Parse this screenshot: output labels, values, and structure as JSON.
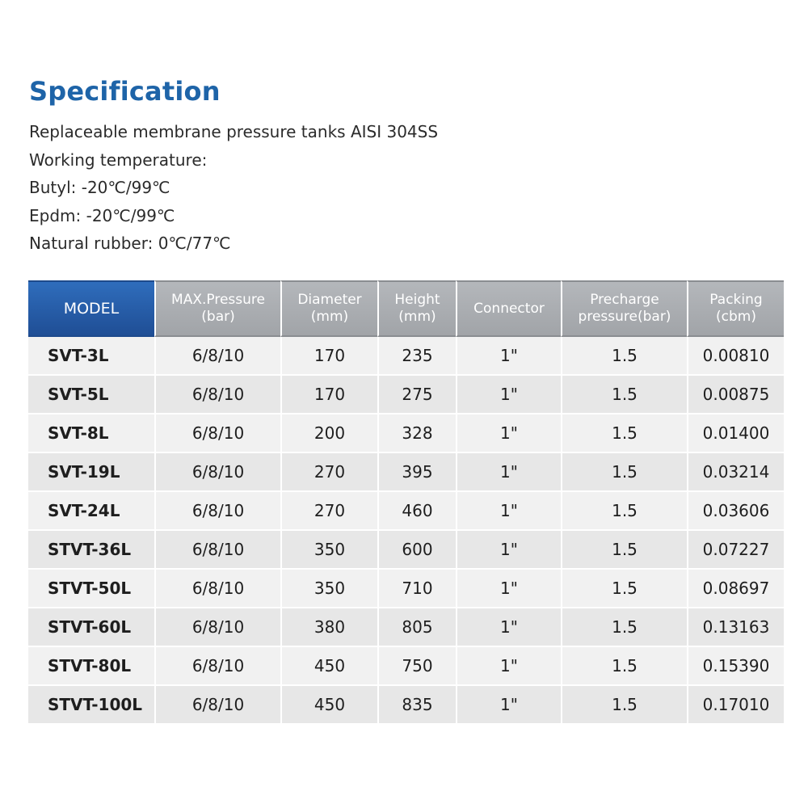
{
  "title": "Specification",
  "description": [
    "Replaceable membrane pressure tanks AISI 304SS",
    "Working temperature:",
    "Butyl: -20℃/99℃",
    "Epdm: -20℃/99℃",
    "Natural rubber: 0℃/77℃"
  ],
  "table": {
    "headers": [
      [
        "MODEL"
      ],
      [
        "MAX.Pressure",
        "(bar)"
      ],
      [
        "Diameter",
        "(mm)"
      ],
      [
        "Height",
        "(mm)"
      ],
      [
        "Connector"
      ],
      [
        "Precharge",
        "pressure(bar)"
      ],
      [
        "Packing",
        "(cbm)"
      ]
    ],
    "rows": [
      [
        "SVT-3L",
        "6/8/10",
        "170",
        "235",
        "1\"",
        "1.5",
        "0.00810"
      ],
      [
        "SVT-5L",
        "6/8/10",
        "170",
        "275",
        "1\"",
        "1.5",
        "0.00875"
      ],
      [
        "SVT-8L",
        "6/8/10",
        "200",
        "328",
        "1\"",
        "1.5",
        "0.01400"
      ],
      [
        "SVT-19L",
        "6/8/10",
        "270",
        "395",
        "1\"",
        "1.5",
        "0.03214"
      ],
      [
        "SVT-24L",
        "6/8/10",
        "270",
        "460",
        "1\"",
        "1.5",
        "0.03606"
      ],
      [
        "STVT-36L",
        "6/8/10",
        "350",
        "600",
        "1\"",
        "1.5",
        "0.07227"
      ],
      [
        "STVT-50L",
        "6/8/10",
        "350",
        "710",
        "1\"",
        "1.5",
        "0.08697"
      ],
      [
        "STVT-60L",
        "6/8/10",
        "380",
        "805",
        "1\"",
        "1.5",
        "0.13163"
      ],
      [
        "STVT-80L",
        "6/8/10",
        "450",
        "750",
        "1\"",
        "1.5",
        "0.15390"
      ],
      [
        "STVT-100L",
        "6/8/10",
        "450",
        "835",
        "1\"",
        "1.5",
        "0.17010"
      ]
    ]
  },
  "colors": {
    "title": "#1e64a8",
    "model_header": "#2f6dbc",
    "header_gray": "#a9acb0",
    "row_light": "#f1f1f1",
    "row_dark": "#e7e7e7"
  }
}
